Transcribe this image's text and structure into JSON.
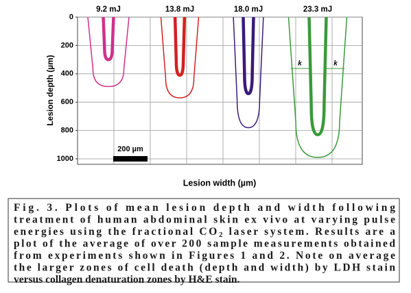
{
  "chart_data": {
    "type": "lesion-profile",
    "ylabel": "Lesion depth (µm)",
    "xlabel": "Lesion width (µm)",
    "ylim": [
      0,
      1000
    ],
    "yticks": [
      0,
      200,
      400,
      600,
      800,
      1000
    ],
    "grid": true,
    "lesions": [
      {
        "label": "9.2 mJ",
        "color": "#d0308a",
        "outer_width": 240,
        "outer_depth": 490,
        "inner_width": 60,
        "inner_depth": 300
      },
      {
        "label": "13.8 mJ",
        "color": "#d42020",
        "outer_width": 220,
        "outer_depth": 570,
        "inner_width": 55,
        "inner_depth": 410
      },
      {
        "label": "18.0 mJ",
        "color": "#3a1a7a",
        "outer_width": 175,
        "outer_depth": 780,
        "inner_width": 60,
        "inner_depth": 540
      },
      {
        "label": "23.3 mJ",
        "color": "#3a9a3a",
        "outer_width": 340,
        "outer_depth": 990,
        "inner_width": 100,
        "inner_depth": 830
      }
    ],
    "annotations": [
      "k",
      "k"
    ],
    "scale_bar": {
      "label": "200 µm",
      "value": 200
    }
  },
  "caption": {
    "lines": [
      [
        "Fig. 3. Plots of mean lesion depth and width following"
      ],
      [
        "treatment of human abdominal skin ex vivo at varying pulse"
      ],
      [
        "energies using the fractional CO",
        "2",
        " laser system. Results are a"
      ],
      [
        "plot of the average of over 200 sample measurements obtained"
      ],
      [
        "from experiments shown in Figures 1 and 2. Note on average"
      ],
      [
        "the larger zones of cell death (depth and width) by LDH stain"
      ],
      [
        "versus collagen denaturation zones by H&E stain."
      ]
    ]
  }
}
